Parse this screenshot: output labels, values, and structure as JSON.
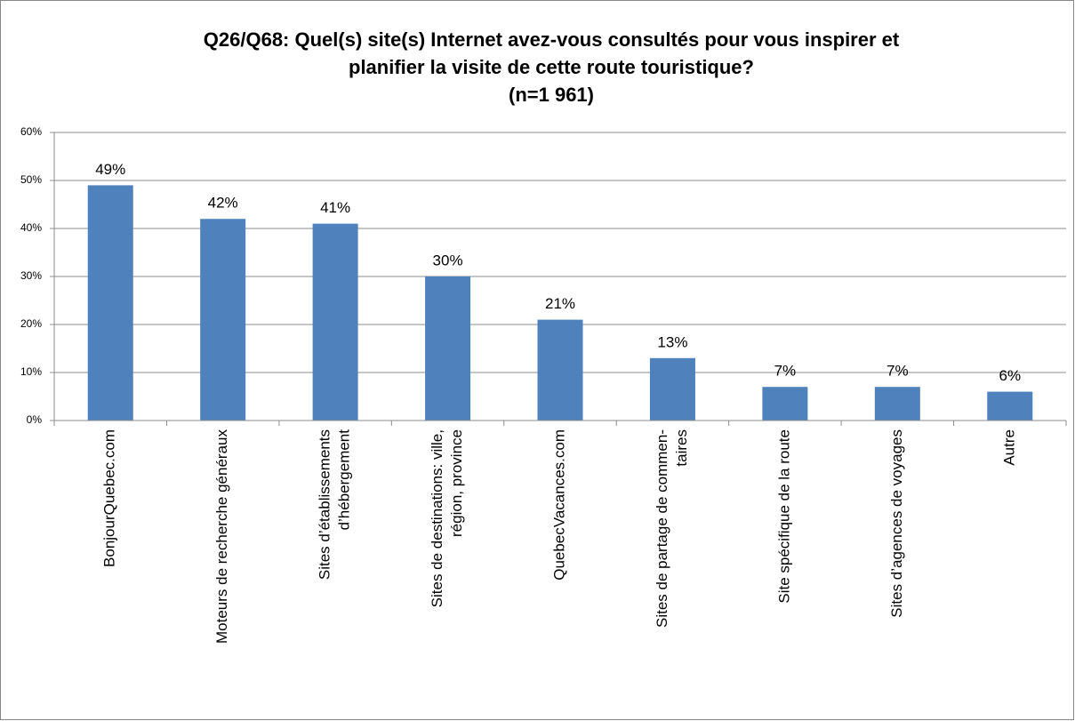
{
  "chart_data": {
    "type": "bar",
    "title": [
      "Q26/Q68: Quel(s) site(s) Internet avez-vous consultés pour vous inspirer et",
      "planifier la visite de cette route touristique?",
      "(n=1 961)"
    ],
    "categories": [
      [
        "BonjourQuebec.com"
      ],
      [
        "Moteurs de recherche généraux"
      ],
      [
        "Sites d’établissements",
        "d’hébergement"
      ],
      [
        "Sites de destinations: ville,",
        "région, province"
      ],
      [
        "QuebecVacances.com"
      ],
      [
        "Sites de partage de commen-",
        "taires"
      ],
      [
        "Site spécifique de la route"
      ],
      [
        "Sites d’agences de voyages"
      ],
      [
        "Autre"
      ]
    ],
    "values": [
      49,
      42,
      41,
      30,
      21,
      13,
      7,
      7,
      6
    ],
    "value_labels": [
      "49%",
      "42%",
      "41%",
      "30%",
      "21%",
      "13%",
      "7%",
      "7%",
      "6%"
    ],
    "color": "#4f81bd",
    "ylim": [
      0,
      60
    ],
    "yticks": [
      {
        "value": 0,
        "label": "0%"
      },
      {
        "value": 10,
        "label": "10%"
      },
      {
        "value": 20,
        "label": "20%"
      },
      {
        "value": 30,
        "label": "30%"
      },
      {
        "value": 40,
        "label": "40%"
      },
      {
        "value": 50,
        "label": "50%"
      },
      {
        "value": 60,
        "label": "60%"
      }
    ],
    "grid": true
  }
}
